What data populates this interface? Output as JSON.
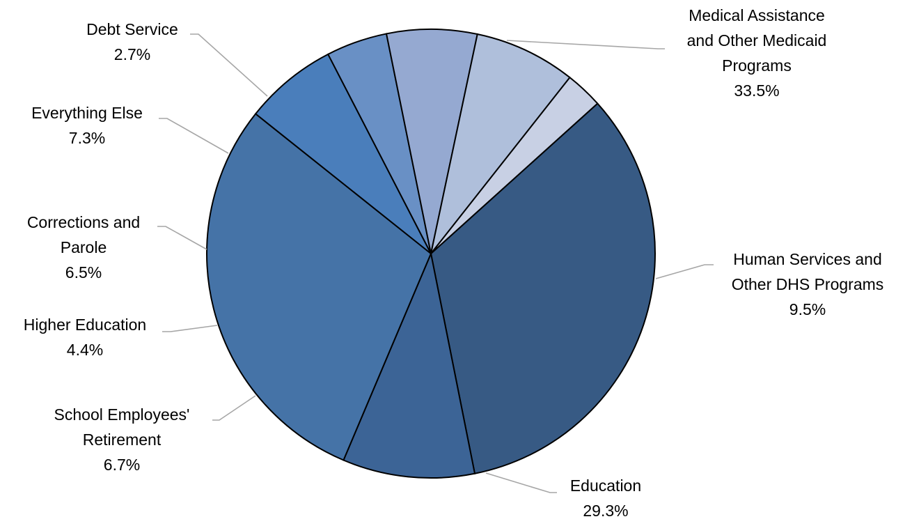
{
  "chart_data": {
    "type": "pie",
    "title": "",
    "start_angle_deg": -42,
    "direction": "clockwise",
    "slices": [
      {
        "label_lines": [
          "Medical Assistance",
          "and Other Medicaid",
          "Programs"
        ],
        "value": 33.5,
        "value_label": "33.5%",
        "color": "#375a84"
      },
      {
        "label_lines": [
          "Human Services and",
          "Other DHS Programs"
        ],
        "value": 9.5,
        "value_label": "9.5%",
        "color": "#3c6496"
      },
      {
        "label_lines": [
          "Education"
        ],
        "value": 29.3,
        "value_label": "29.3%",
        "color": "#4573a7"
      },
      {
        "label_lines": [
          "School Employees'",
          "Retirement"
        ],
        "value": 6.7,
        "value_label": "6.7%",
        "color": "#4a7ebb"
      },
      {
        "label_lines": [
          "Higher Education"
        ],
        "value": 4.4,
        "value_label": "4.4%",
        "color": "#6990c5"
      },
      {
        "label_lines": [
          "Corrections and",
          "Parole"
        ],
        "value": 6.5,
        "value_label": "6.5%",
        "color": "#95a9d1"
      },
      {
        "label_lines": [
          "Everything Else"
        ],
        "value": 7.3,
        "value_label": "7.3%",
        "color": "#afbfdb"
      },
      {
        "label_lines": [
          "Debt Service"
        ],
        "value": 2.7,
        "value_label": "2.7%",
        "color": "#c8d0e4"
      }
    ]
  }
}
